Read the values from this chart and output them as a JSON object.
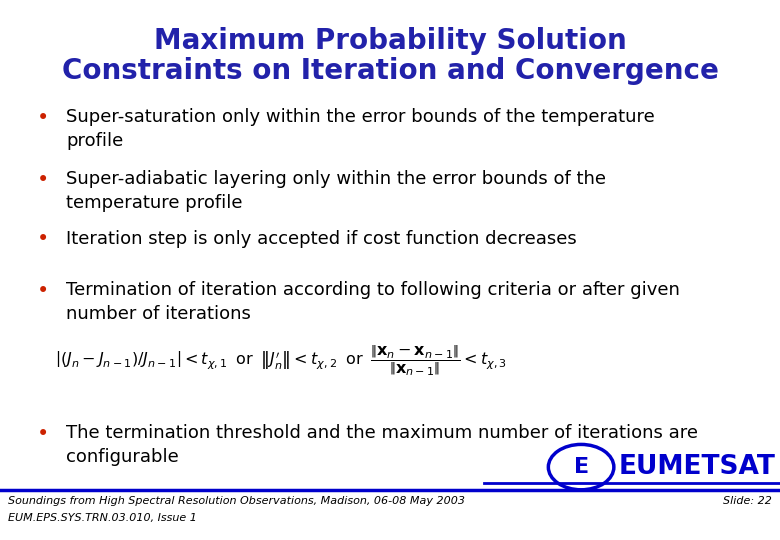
{
  "title_line1": "Maximum Probability Solution",
  "title_line2": "Constraints on Iteration and Convergence",
  "title_color": "#2222AA",
  "title_fontsize": 20,
  "bullet_color": "#CC2200",
  "bullet_text_color": "#000000",
  "bullet_fontsize": 13,
  "bullets": [
    "Super-saturation only within the error bounds of the temperature\nprofile",
    "Super-adiabatic layering only within the error bounds of the\ntemperature profile",
    "Iteration step is only accepted if cost function decreases",
    "Termination of iteration according to following criteria or after given\nnumber of iterations"
  ],
  "final_bullet": "The termination threshold and the maximum number of iterations are\nconfigurable",
  "footer_left1": "Soundings from High Spectral Resolution Observations, Madison, 06-08 May 2003",
  "footer_left2": "EUM.EPS.SYS.TRN.03.010, Issue 1",
  "footer_right": "Slide: 22",
  "footer_color": "#000000",
  "footer_fontsize": 8,
  "line_color": "#0000CC",
  "bg_color": "#FFFFFF",
  "eumetsat_color": "#0000CC"
}
